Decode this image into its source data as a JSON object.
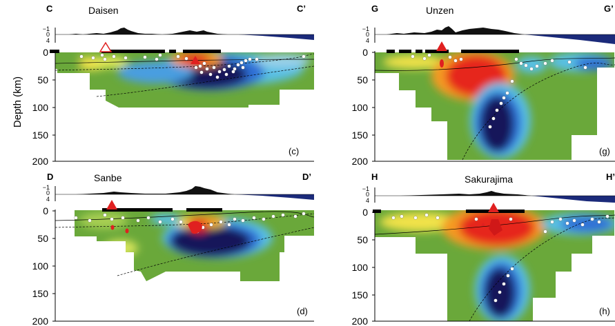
{
  "figure": {
    "y_axis_label": "Depth (km)",
    "depth_ticks": [
      "0",
      "50",
      "100",
      "150",
      "200"
    ],
    "elevation_ticks": [
      "−1",
      "0",
      "4"
    ],
    "colors": {
      "fast": "#14145a",
      "blue": "#2f6fd6",
      "cyan": "#58c0e6",
      "neutral": "#6aa83a",
      "yellow": "#f1e24a",
      "orange": "#f49a24",
      "slow": "#e6281e",
      "volcano": "#e02020",
      "seismicity": "#ffffff",
      "sea": "#1b2a7a",
      "land": "#111111"
    },
    "panels": [
      {
        "id": "c",
        "start_label": "C",
        "end_label": "C’",
        "volcano": "Daisen",
        "panel_letter": "(c)",
        "volcano_marker": "hollow"
      },
      {
        "id": "g",
        "start_label": "G",
        "end_label": "G’",
        "volcano": "Unzen",
        "panel_letter": "(g)",
        "volcano_marker": "filled"
      },
      {
        "id": "d",
        "start_label": "D",
        "end_label": "D’",
        "volcano": "Sanbe",
        "panel_letter": "(d)",
        "volcano_marker": "filled"
      },
      {
        "id": "h",
        "start_label": "H",
        "end_label": "H’",
        "volcano": "Sakurajima",
        "panel_letter": "(h)",
        "volcano_marker": "filled"
      }
    ]
  }
}
